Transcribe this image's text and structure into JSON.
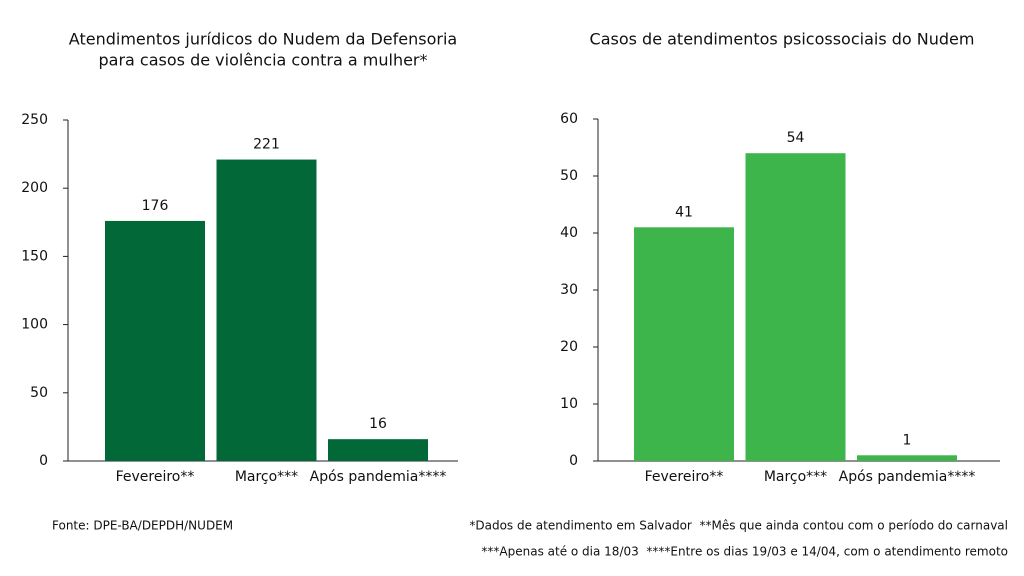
{
  "chart_data": [
    {
      "type": "bar",
      "title": [
        "Atendimentos jurídicos do Nudem da Defensoria",
        "para casos de violência contra a mulher*"
      ],
      "categories": [
        "Fevereiro**",
        "Março***",
        "Após pandemia****"
      ],
      "values": [
        176,
        221,
        16
      ],
      "color": "#036837",
      "ylim": [
        0,
        250
      ],
      "yticks": [
        0,
        50,
        100,
        150,
        200,
        250
      ]
    },
    {
      "type": "bar",
      "title": [
        "Casos de atendimentos psicossociais do Nudem"
      ],
      "categories": [
        "Fevereiro**",
        "Março***",
        "Após pandemia****"
      ],
      "values": [
        41,
        54,
        1
      ],
      "color": "#3db54a",
      "ylim": [
        0,
        60
      ],
      "yticks": [
        0,
        10,
        20,
        30,
        40,
        50,
        60
      ]
    }
  ],
  "source": "Fonte: DPE-BA/DEPDH/NUDEM",
  "notes": [
    "*Dados de atendimento em Salvador  **Mês que ainda contou com o período do carnaval",
    "***Apenas até o dia 18/03  ****Entre os dias 19/03 e 14/04, com o atendimento remoto"
  ]
}
